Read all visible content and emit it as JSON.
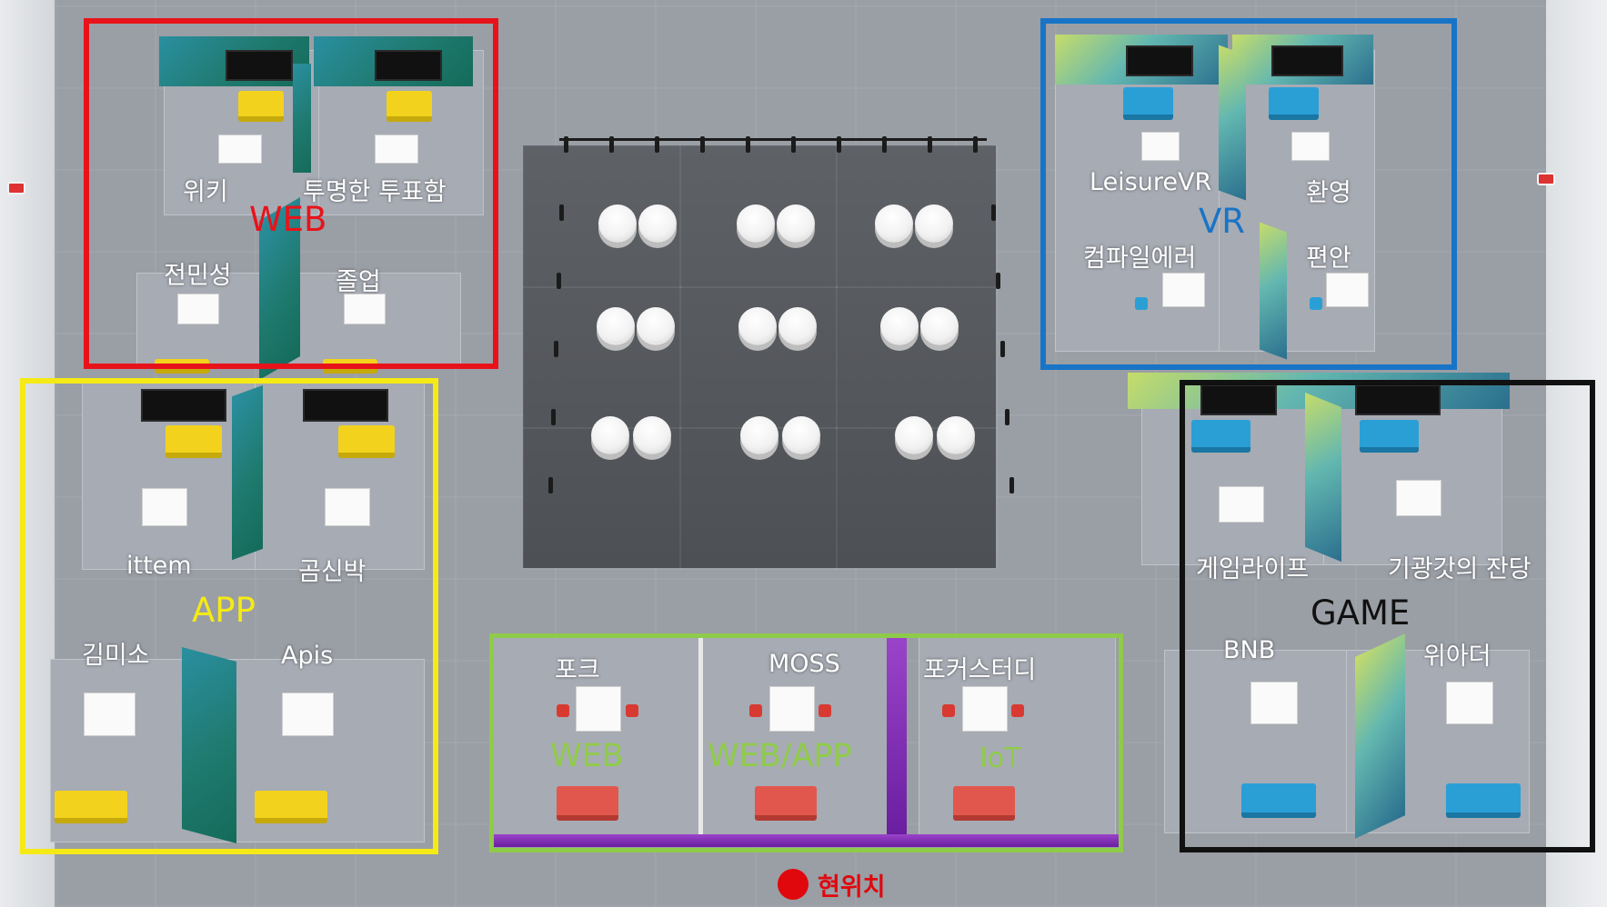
{
  "colors": {
    "web_frame": "#e8131a",
    "vr_frame": "#1874c6",
    "app_frame": "#f5ea16",
    "game_frame": "#111111",
    "bottom_frame": "#8fcb4a",
    "current_dot": "#e0080c"
  },
  "zones": {
    "web": {
      "title": "WEB",
      "booths": [
        "위키",
        "투명한 투표함",
        "전민성",
        "졸업"
      ]
    },
    "vr": {
      "title": "VR",
      "booths": [
        "LeisureVR",
        "환영",
        "컴파일에러",
        "편안"
      ]
    },
    "app": {
      "title": "APP",
      "booths": [
        "ittem",
        "곰신박",
        "김미소",
        "Apis"
      ]
    },
    "game": {
      "title": "GAME",
      "booths": [
        "게임라이프",
        "기광갓의 잔당",
        "BNB",
        "위아더"
      ]
    },
    "bottom": {
      "booths": [
        "포크",
        "MOSS",
        "포커스터디"
      ],
      "categories": [
        "WEB",
        "WEB/APP",
        "IoT"
      ]
    }
  },
  "current_location": {
    "label": "현위치",
    "icon": "red-dot-icon"
  }
}
